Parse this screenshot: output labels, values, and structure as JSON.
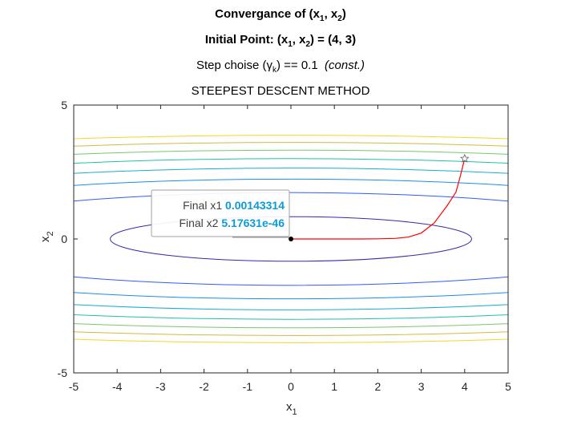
{
  "titles": {
    "line1_prefix": "Convergance of (x",
    "line1_sub1": "1",
    "line1_mid": ", x",
    "line1_sub2": "2",
    "line1_suffix": ")",
    "line2_prefix": "Initial Point: (x",
    "line2_sub1": "1",
    "line2_mid": ", x",
    "line2_sub2": "2",
    "line2_suffix": ") = (4, 3)",
    "line3_prefix": "Step choise (",
    "line3_gamma": "γ",
    "line3_sub": "k",
    "line3_suffix": ") == 0.1  ",
    "line3_italic": "(const.)",
    "line4": "STEEPEST DESCENT METHOD"
  },
  "chart_data": {
    "type": "line",
    "xlabel": "x",
    "xlabel_sub": "1",
    "ylabel": "x",
    "ylabel_sub": "2",
    "xlim": [
      -5,
      5
    ],
    "ylim": [
      -5,
      5
    ],
    "xticks": [
      "-5",
      "-4",
      "-3",
      "-2",
      "-1",
      "0",
      "1",
      "2",
      "3",
      "4",
      "5"
    ],
    "yticks": [
      "-5",
      "0",
      "5"
    ],
    "grid": false,
    "contours": {
      "function": "x1^2 + 25*x2^2",
      "levels": [
        {
          "level": 17.3,
          "color": "#3e26a8"
        },
        {
          "level": 75,
          "color": "#2f5ef9"
        },
        {
          "level": 125,
          "color": "#1a8cee"
        },
        {
          "level": 175,
          "color": "#14aed4"
        },
        {
          "level": 225,
          "color": "#1fc1a4"
        },
        {
          "level": 275,
          "color": "#78c66a"
        },
        {
          "level": 325,
          "color": "#d1bb3d"
        },
        {
          "level": 375,
          "color": "#f9d32a"
        }
      ]
    },
    "series": [
      {
        "color": "#ff0000",
        "x": [
          4,
          3.9,
          3.8,
          3.6,
          3.3,
          3.0,
          2.7,
          2.4,
          2.0,
          1.6,
          1.2,
          0.8,
          0.4,
          0.1,
          0.00143314
        ],
        "y": [
          3,
          2.35,
          1.75,
          1.25,
          0.6,
          0.22,
          0.07,
          0.02,
          0.005,
          0.001,
          0.0002,
          0,
          0,
          0,
          0
        ]
      }
    ],
    "start_point": {
      "x": 4,
      "y": 3,
      "marker": "pentagram"
    },
    "end_point": {
      "x": 0.00143314,
      "y": 0,
      "marker": "dot"
    },
    "datatip": {
      "label1": "Final x1",
      "value1": "0.00143314",
      "label2": "Final x2",
      "value2": "5.17631e-46",
      "value_color": "#0a9bd9"
    }
  }
}
